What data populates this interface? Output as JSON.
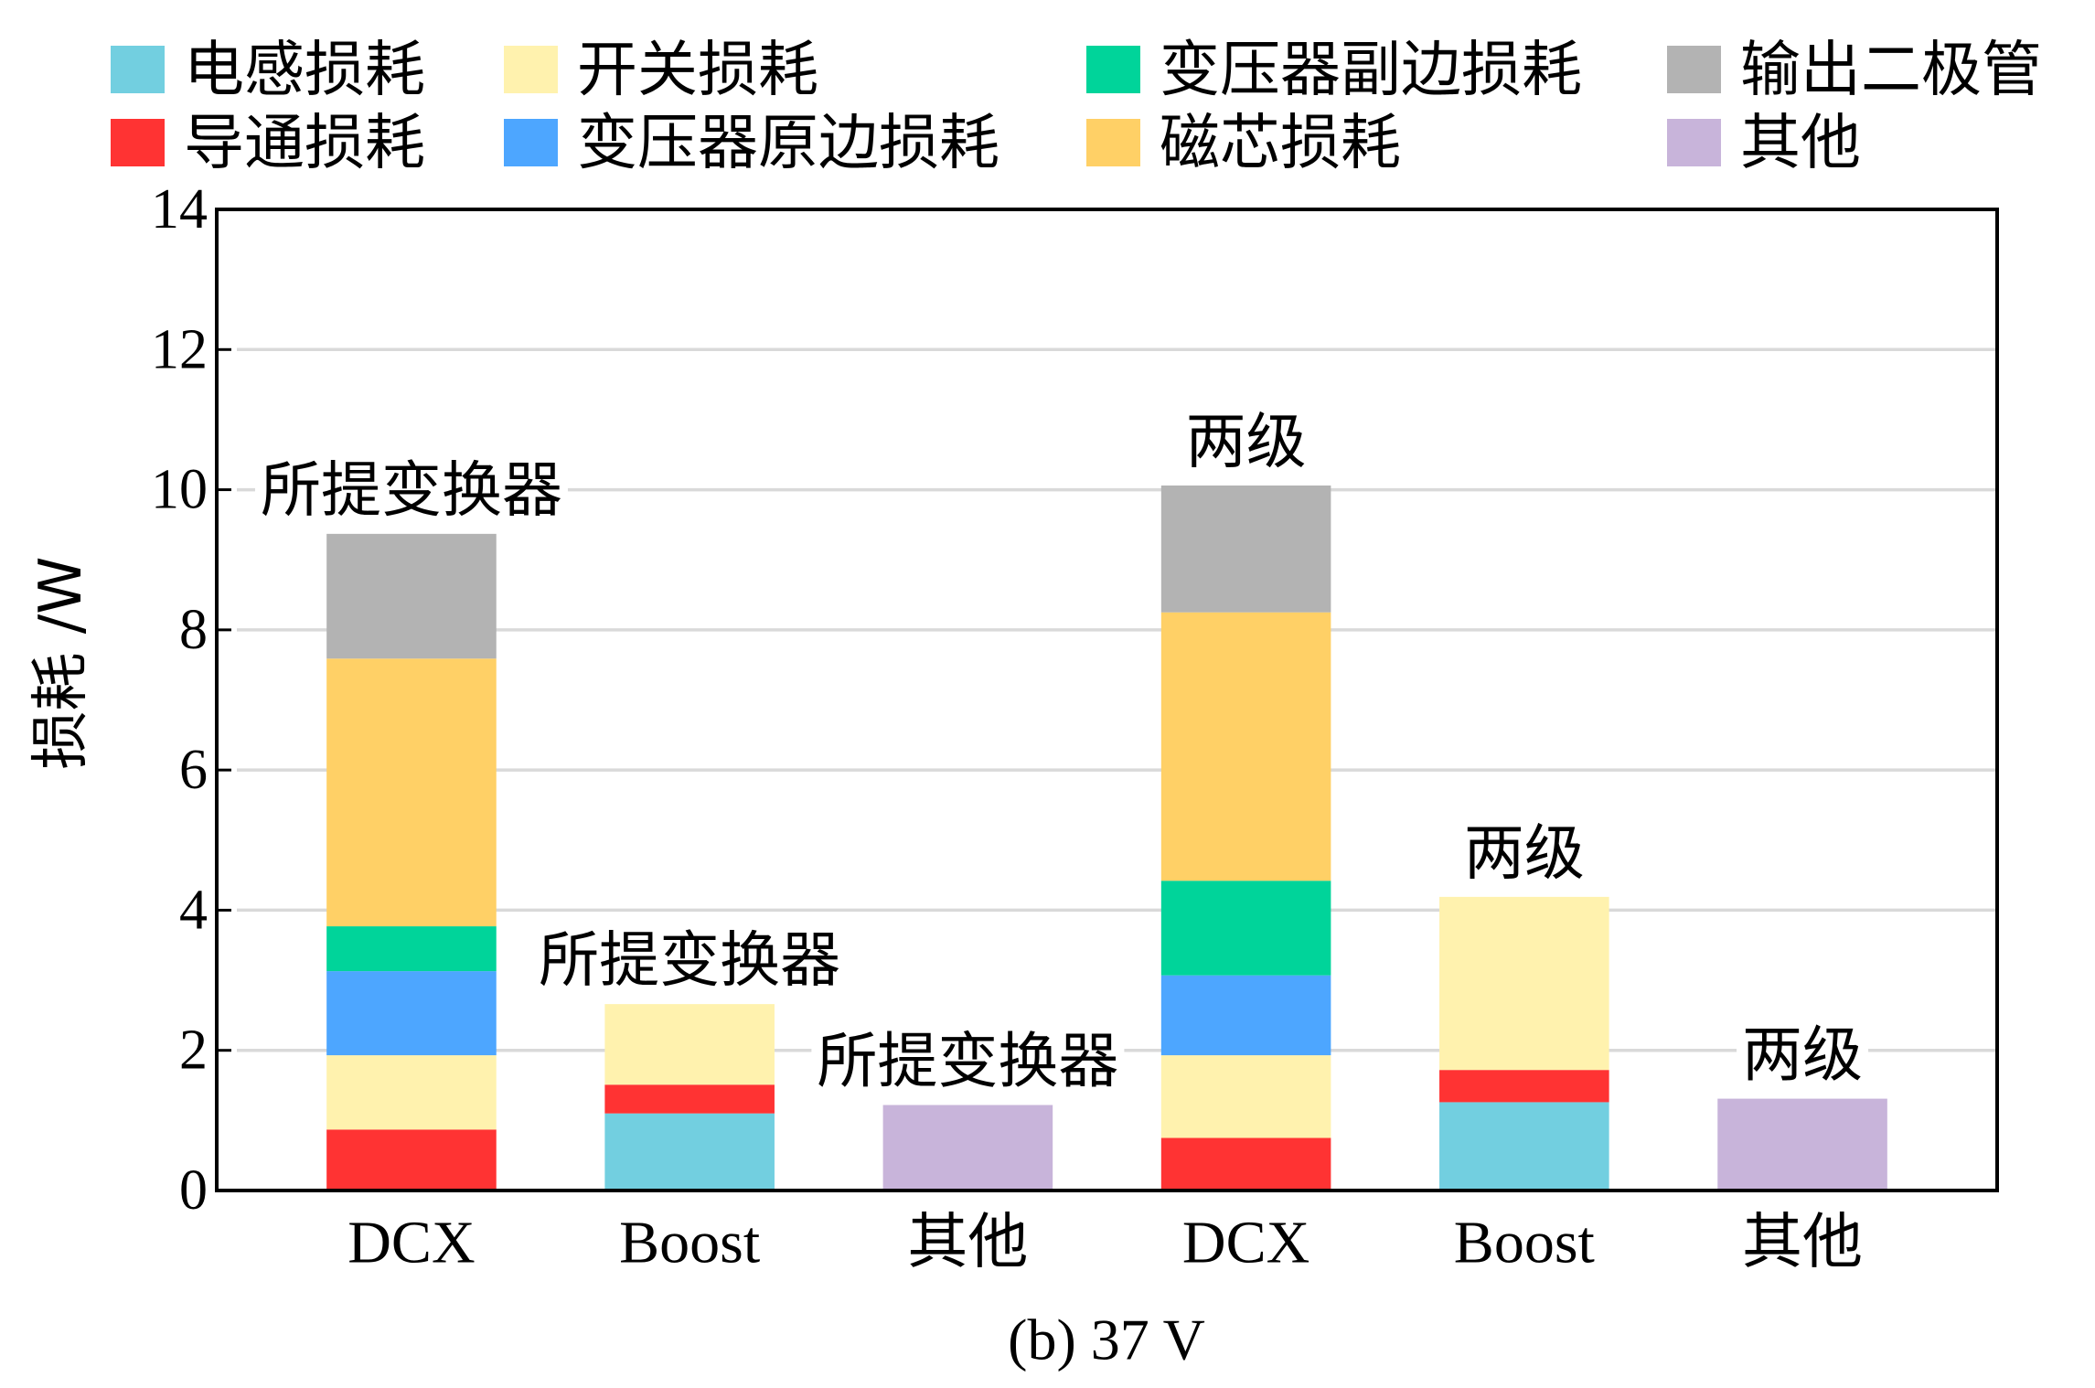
{
  "chart_data": {
    "type": "bar",
    "stacked": true,
    "caption": "(b) 37 V",
    "ylabel": "损耗 /W",
    "ylim": [
      0,
      14
    ],
    "y_ticks": [
      0,
      2,
      4,
      6,
      8,
      10,
      12,
      14
    ],
    "grid": true,
    "legend_position": "top",
    "categories": [
      "DCX",
      "Boost",
      "其他",
      "DCX",
      "Boost",
      "其他"
    ],
    "bar_labels": [
      "所提变换器",
      "所提变换器",
      "所提变换器",
      "两级",
      "两级",
      "两级"
    ],
    "series": [
      {
        "name": "电感损耗",
        "color": "#72CFE0",
        "values": [
          0,
          1.1,
          0,
          0,
          1.26,
          0
        ]
      },
      {
        "name": "导通损耗",
        "color": "#FF3333",
        "values": [
          0.87,
          0.41,
          0,
          0.75,
          0.46,
          0
        ]
      },
      {
        "name": "开关损耗",
        "color": "#FFF2AE",
        "values": [
          1.06,
          1.15,
          0,
          1.18,
          2.47,
          0
        ]
      },
      {
        "name": "变压器原边损耗",
        "color": "#4DA6FF",
        "values": [
          1.2,
          0,
          0,
          1.14,
          0,
          0
        ]
      },
      {
        "name": "变压器副边损耗",
        "color": "#00D49A",
        "values": [
          0.64,
          0,
          0,
          1.35,
          0,
          0
        ]
      },
      {
        "name": "磁芯损耗",
        "color": "#FFD066",
        "values": [
          3.82,
          0,
          0,
          3.83,
          0,
          0
        ]
      },
      {
        "name": "输出二极管",
        "color": "#B3B3B3",
        "values": [
          1.78,
          0,
          0,
          1.81,
          0,
          0
        ]
      },
      {
        "name": "其他",
        "color": "#C8B4DA",
        "values": [
          0,
          0,
          1.22,
          0,
          0,
          1.31
        ]
      }
    ]
  }
}
